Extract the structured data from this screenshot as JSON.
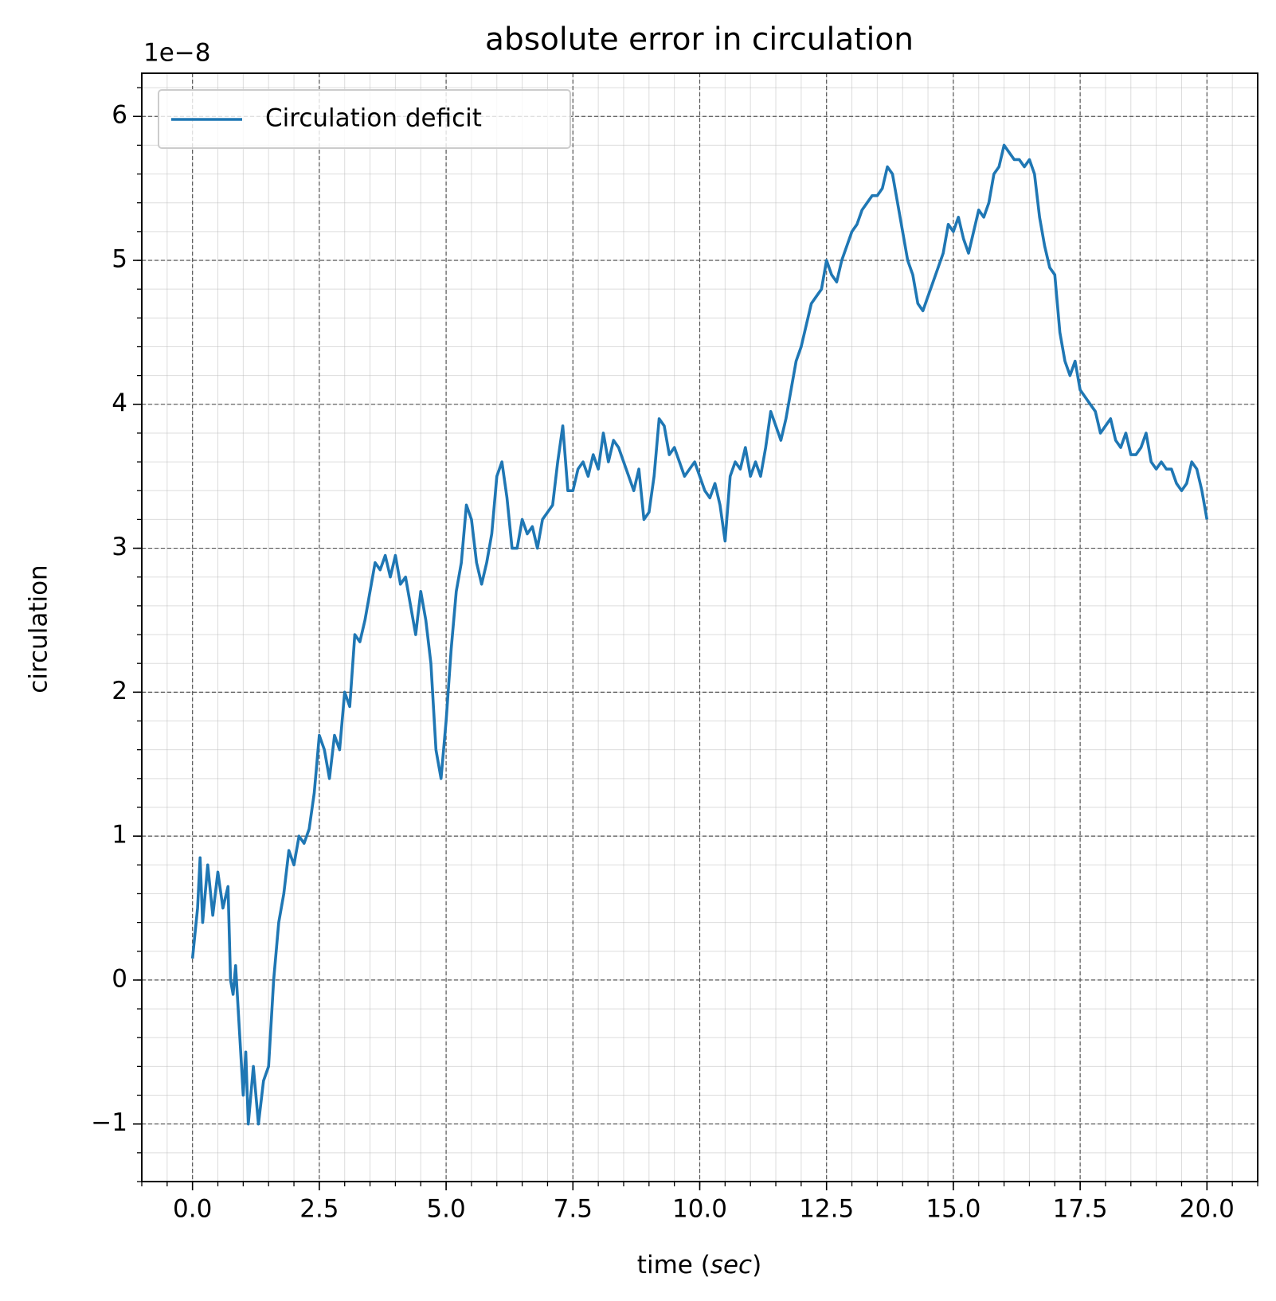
{
  "chart_data": {
    "type": "line",
    "title": "absolute error in circulation",
    "offset_label": "1e−8",
    "xlabel_parts": [
      "time (",
      "sec",
      ")"
    ],
    "ylabel": "circulation",
    "legend": "upper left",
    "grid": true,
    "xlim": [
      -1,
      21
    ],
    "ylim": [
      -1.4,
      6.3
    ],
    "xticks": [
      {
        "value": 0,
        "label": "0.0"
      },
      2.5,
      {
        "value": 5,
        "label": "5.0"
      },
      7.5,
      {
        "value": 10,
        "label": "10.0"
      },
      12.5,
      {
        "value": 15,
        "label": "15.0"
      },
      17.5,
      {
        "value": 20,
        "label": "20.0"
      }
    ],
    "yticks": [
      {
        "value": -1,
        "label": "−1"
      },
      0,
      1,
      2,
      3,
      4,
      5,
      6
    ],
    "xminorticks": [
      -1,
      -0.5,
      0,
      0.5,
      1,
      1.5,
      2,
      2.5,
      3,
      3.5,
      4,
      4.5,
      5,
      5.5,
      6,
      6.5,
      7,
      7.5,
      8,
      8.5,
      9,
      9.5,
      10,
      10.5,
      11,
      11.5,
      12,
      12.5,
      13,
      13.5,
      14,
      14.5,
      15,
      15.5,
      16,
      16.5,
      17,
      17.5,
      18,
      18.5,
      19,
      19.5,
      20,
      20.5,
      21
    ],
    "yminorticks": [
      -1.4,
      -1.2,
      -1,
      -0.8,
      -0.6,
      -0.4,
      -0.2,
      0,
      0.2,
      0.4,
      0.6,
      0.8,
      1,
      1.2,
      1.4,
      1.6,
      1.8,
      2,
      2.2,
      2.4,
      2.6,
      2.8,
      3,
      3.2,
      3.4,
      3.6,
      3.8,
      4,
      4.2,
      4.4,
      4.6,
      4.8,
      5,
      5.2,
      5.4,
      5.6,
      5.8,
      6,
      6.2
    ],
    "x": [
      0,
      0.1,
      0.15,
      0.2,
      0.3,
      0.4,
      0.5,
      0.6,
      0.7,
      0.75,
      0.8,
      0.85,
      0.9,
      1,
      1.05,
      1.1,
      1.2,
      1.3,
      1.4,
      1.5,
      1.6,
      1.7,
      1.8,
      1.9,
      2,
      2.1,
      2.2,
      2.3,
      2.4,
      2.5,
      2.6,
      2.7,
      2.8,
      2.9,
      3,
      3.1,
      3.2,
      3.3,
      3.4,
      3.5,
      3.6,
      3.7,
      3.8,
      3.9,
      4,
      4.1,
      4.2,
      4.3,
      4.4,
      4.5,
      4.6,
      4.7,
      4.8,
      4.9,
      5,
      5.1,
      5.2,
      5.3,
      5.4,
      5.5,
      5.6,
      5.7,
      5.8,
      5.9,
      6,
      6.1,
      6.2,
      6.3,
      6.4,
      6.5,
      6.6,
      6.7,
      6.8,
      6.9,
      7,
      7.1,
      7.2,
      7.3,
      7.4,
      7.5,
      7.6,
      7.7,
      7.8,
      7.9,
      8,
      8.1,
      8.2,
      8.3,
      8.4,
      8.5,
      8.6,
      8.7,
      8.8,
      8.9,
      9,
      9.1,
      9.2,
      9.3,
      9.4,
      9.5,
      9.6,
      9.7,
      9.8,
      9.9,
      10,
      10.1,
      10.2,
      10.3,
      10.4,
      10.5,
      10.6,
      10.7,
      10.8,
      10.9,
      11,
      11.1,
      11.2,
      11.3,
      11.4,
      11.5,
      11.6,
      11.7,
      11.8,
      11.9,
      12,
      12.1,
      12.2,
      12.3,
      12.4,
      12.5,
      12.6,
      12.7,
      12.8,
      12.9,
      13,
      13.1,
      13.2,
      13.3,
      13.4,
      13.5,
      13.6,
      13.7,
      13.8,
      13.9,
      14,
      14.1,
      14.2,
      14.3,
      14.4,
      14.5,
      14.6,
      14.7,
      14.8,
      14.9,
      15,
      15.1,
      15.2,
      15.3,
      15.4,
      15.5,
      15.6,
      15.7,
      15.8,
      15.9,
      16,
      16.1,
      16.2,
      16.3,
      16.4,
      16.5,
      16.6,
      16.7,
      16.8,
      16.9,
      17,
      17.1,
      17.2,
      17.3,
      17.4,
      17.5,
      17.6,
      17.7,
      17.8,
      17.9,
      18,
      18.1,
      18.2,
      18.3,
      18.4,
      18.5,
      18.6,
      18.7,
      18.8,
      18.9,
      19,
      19.1,
      19.2,
      19.3,
      19.4,
      19.5,
      19.6,
      19.7,
      19.8,
      19.9,
      20
    ],
    "series": [
      {
        "name": "Circulation deficit",
        "color": "#1f77b4",
        "values": [
          0.15,
          0.5,
          0.85,
          0.4,
          0.8,
          0.45,
          0.75,
          0.5,
          0.65,
          0,
          -0.1,
          0.1,
          -0.2,
          -0.8,
          -0.5,
          -1,
          -0.6,
          -1,
          -0.7,
          -0.6,
          0,
          0.4,
          0.6,
          0.9,
          0.8,
          1,
          0.95,
          1.05,
          1.3,
          1.7,
          1.6,
          1.4,
          1.7,
          1.6,
          2,
          1.9,
          2.4,
          2.35,
          2.5,
          2.7,
          2.9,
          2.85,
          2.95,
          2.8,
          2.95,
          2.75,
          2.8,
          2.6,
          2.4,
          2.7,
          2.5,
          2.2,
          1.6,
          1.4,
          1.8,
          2.3,
          2.7,
          2.9,
          3.3,
          3.2,
          2.9,
          2.75,
          2.9,
          3.1,
          3.5,
          3.6,
          3.35,
          3,
          3,
          3.2,
          3.1,
          3.15,
          3,
          3.2,
          3.25,
          3.3,
          3.6,
          3.85,
          3.4,
          3.4,
          3.55,
          3.6,
          3.5,
          3.65,
          3.55,
          3.8,
          3.6,
          3.75,
          3.7,
          3.6,
          3.5,
          3.4,
          3.55,
          3.2,
          3.25,
          3.5,
          3.9,
          3.85,
          3.65,
          3.7,
          3.6,
          3.5,
          3.55,
          3.6,
          3.5,
          3.4,
          3.35,
          3.45,
          3.3,
          3.05,
          3.5,
          3.6,
          3.55,
          3.7,
          3.5,
          3.6,
          3.5,
          3.7,
          3.95,
          3.85,
          3.75,
          3.9,
          4.1,
          4.3,
          4.4,
          4.55,
          4.7,
          4.75,
          4.8,
          5,
          4.9,
          4.85,
          5,
          5.1,
          5.2,
          5.25,
          5.35,
          5.4,
          5.45,
          5.45,
          5.5,
          5.65,
          5.6,
          5.4,
          5.2,
          5,
          4.9,
          4.7,
          4.65,
          4.75,
          4.85,
          4.95,
          5.05,
          5.25,
          5.2,
          5.3,
          5.15,
          5.05,
          5.2,
          5.35,
          5.3,
          5.4,
          5.6,
          5.65,
          5.8,
          5.75,
          5.7,
          5.7,
          5.65,
          5.7,
          5.6,
          5.3,
          5.1,
          4.95,
          4.9,
          4.5,
          4.3,
          4.2,
          4.3,
          4.1,
          4.05,
          4,
          3.95,
          3.8,
          3.85,
          3.9,
          3.75,
          3.7,
          3.8,
          3.65,
          3.65,
          3.7,
          3.8,
          3.6,
          3.55,
          3.6,
          3.55,
          3.55,
          3.45,
          3.4,
          3.45,
          3.6,
          3.55,
          3.4,
          3.2
        ]
      }
    ]
  }
}
